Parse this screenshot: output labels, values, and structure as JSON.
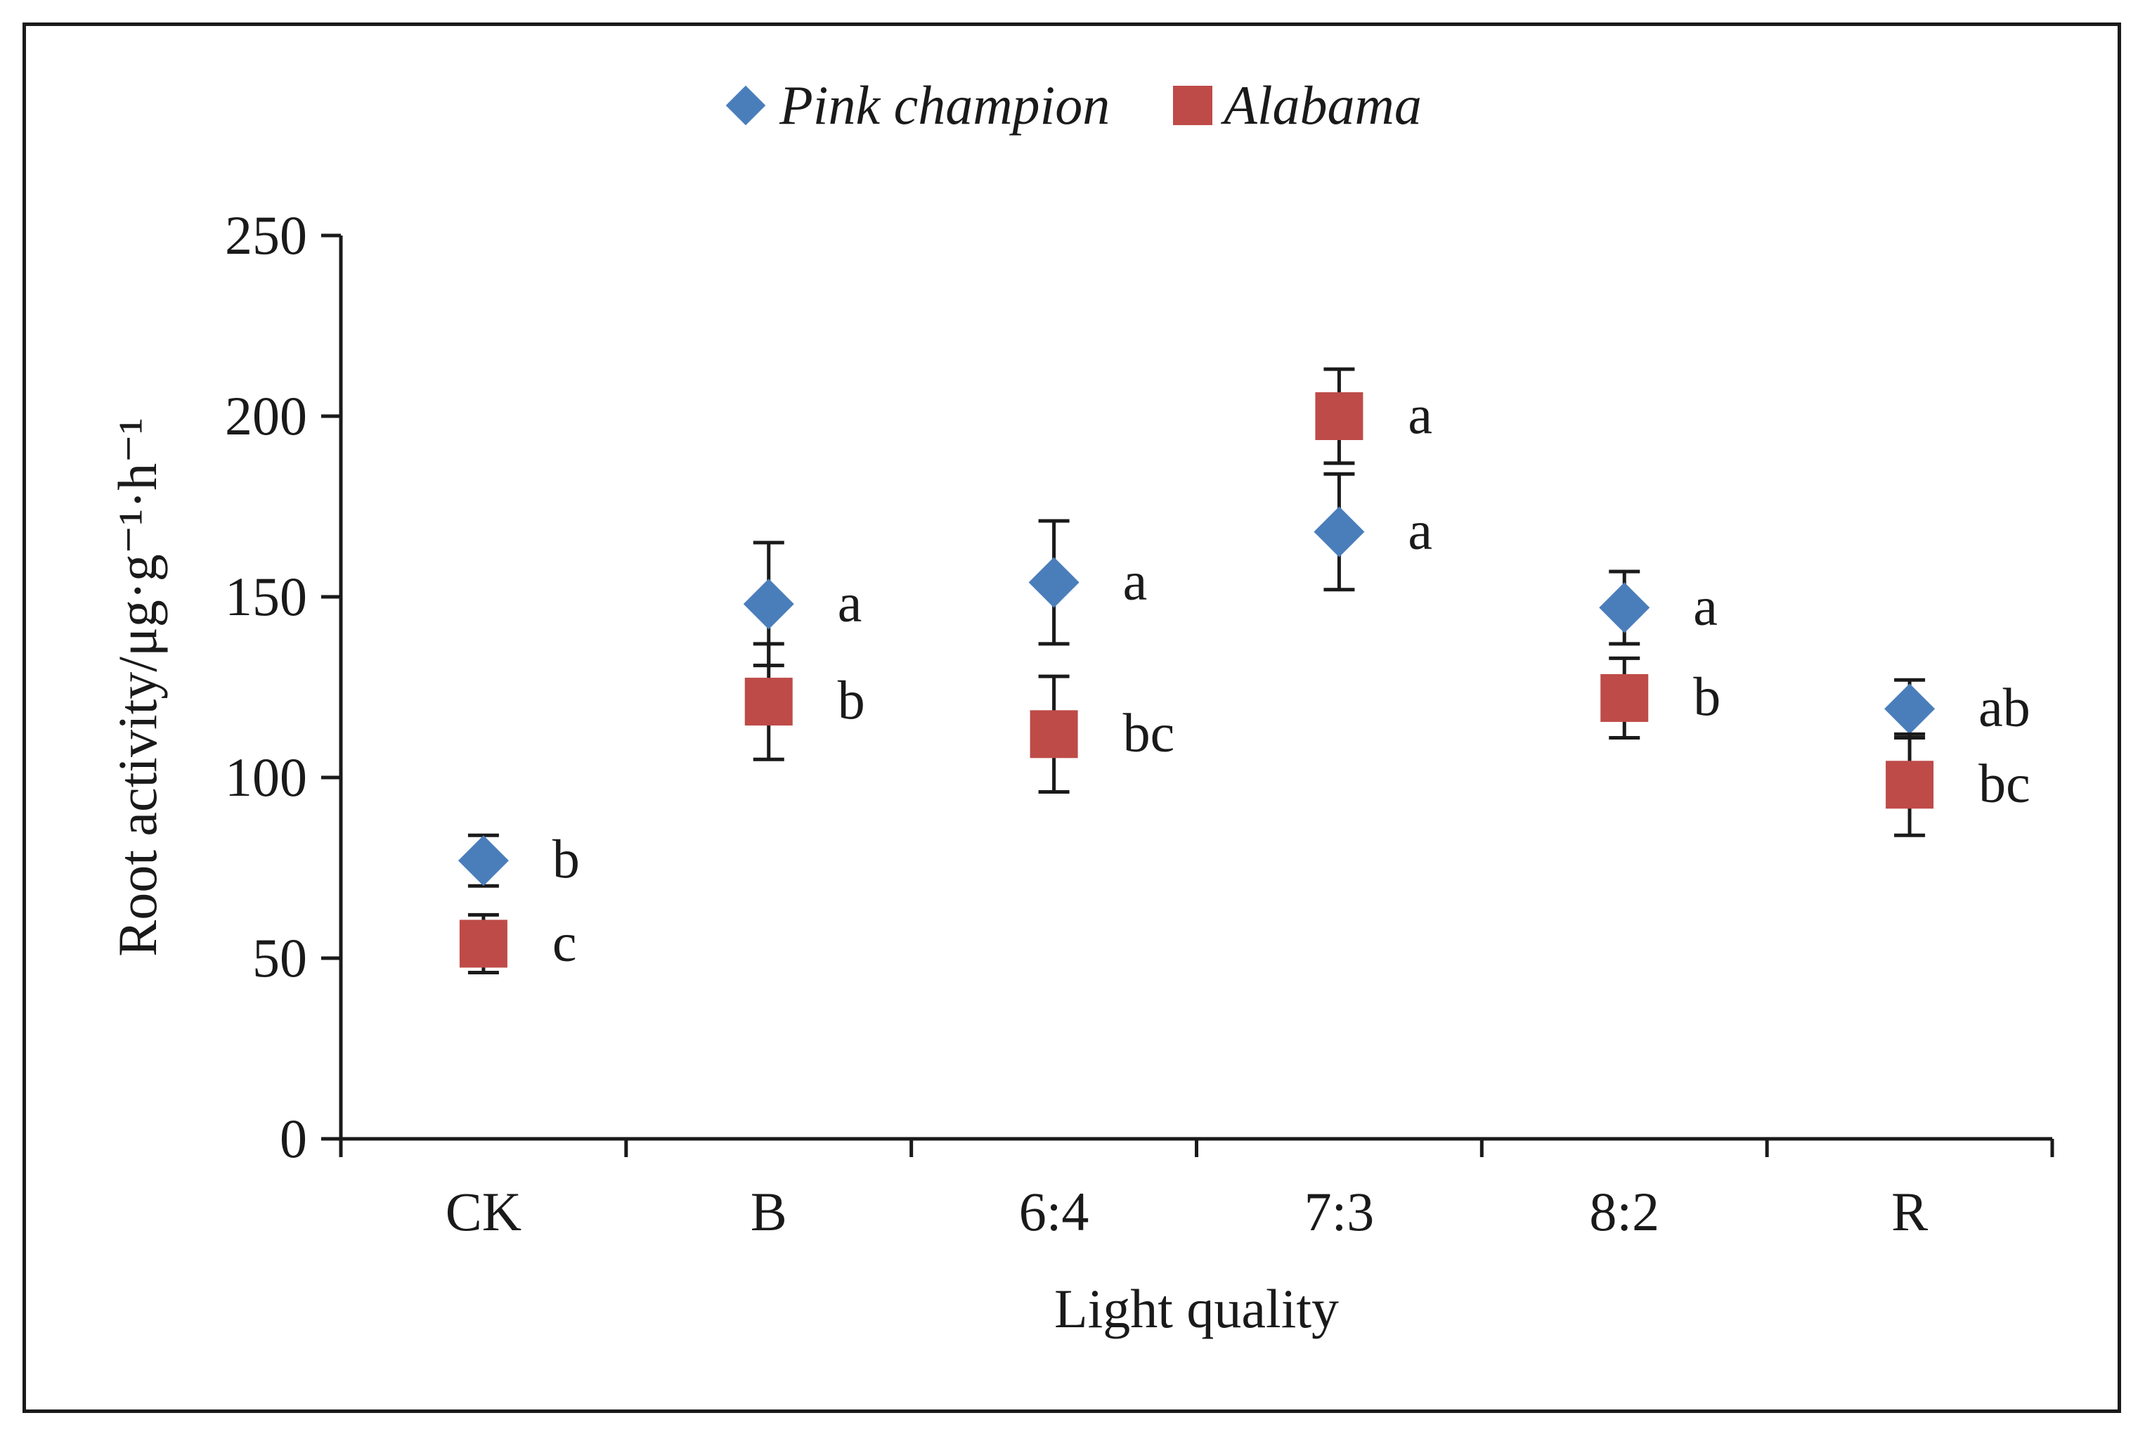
{
  "chart_data": {
    "type": "scatter",
    "title": "",
    "xlabel": "Light quality",
    "ylabel": "Root activity/μg·g⁻¹·h⁻¹",
    "ylim": [
      0,
      250
    ],
    "yticks": [
      "0",
      "50",
      "100",
      "150",
      "200",
      "250"
    ],
    "categories": [
      "CK",
      "B",
      "6:4",
      "7:3",
      "8:2",
      "R"
    ],
    "legend_position": "top",
    "series": [
      {
        "name": "Pink champion",
        "marker": "diamond",
        "color": "#4a7ebb",
        "values": [
          77,
          148,
          154,
          168,
          147,
          119
        ],
        "error": [
          7,
          17,
          17,
          16,
          10,
          8
        ],
        "letters": [
          "b",
          "a",
          "a",
          "a",
          "a",
          "ab"
        ]
      },
      {
        "name": "Alabama",
        "marker": "square",
        "color": "#be4b48",
        "values": [
          54,
          121,
          112,
          200,
          122,
          98
        ],
        "error": [
          8,
          16,
          16,
          13,
          11,
          14
        ],
        "letters": [
          "c",
          "b",
          "bc",
          "a",
          "b",
          "bc"
        ]
      }
    ]
  }
}
